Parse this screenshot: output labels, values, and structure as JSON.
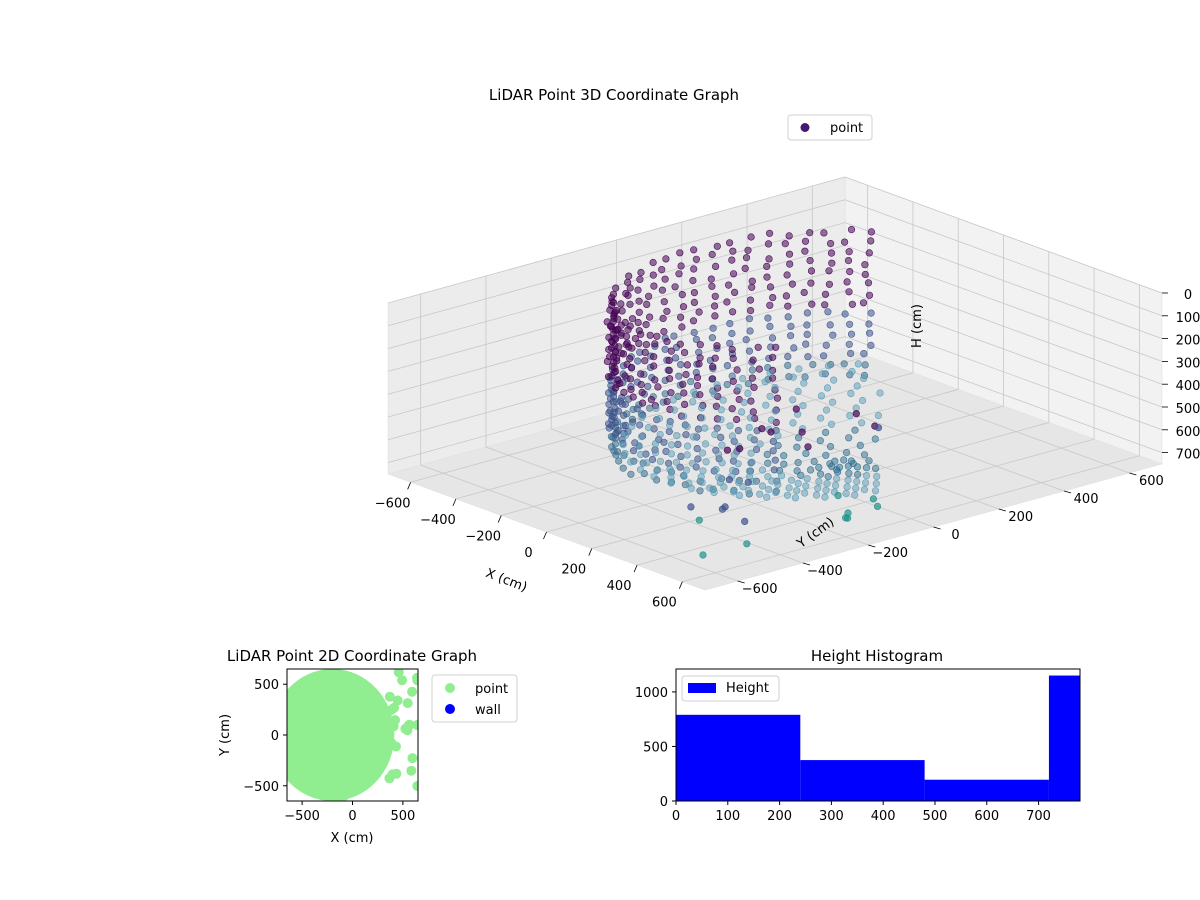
{
  "chart_data": [
    {
      "type": "scatter",
      "projection": "3d",
      "title": "LiDAR Point 3D Coordinate Graph",
      "xlabel": "X (cm)",
      "ylabel": "Y (cm)",
      "zlabel": "H (cm)",
      "xlim": [
        -700,
        700
      ],
      "ylim": [
        -700,
        700
      ],
      "zlim": [
        0,
        750
      ],
      "z_inverted": true,
      "xticks": [
        -600,
        -400,
        -200,
        0,
        200,
        400,
        600
      ],
      "yticks": [
        -600,
        -400,
        -200,
        0,
        200,
        400,
        600
      ],
      "zticks": [
        0,
        100,
        200,
        300,
        400,
        500,
        600,
        700
      ],
      "grid": true,
      "legend": {
        "placement": "upper-right",
        "entries": [
          {
            "label": "point",
            "color": "#46186e"
          }
        ]
      },
      "point_groups": [
        {
          "shape": "cylindrical-wall",
          "center": [
            -100,
            150
          ],
          "radius": 480,
          "angle_range_deg": [
            95,
            320
          ],
          "height_range": [
            60,
            720
          ]
        },
        {
          "shape": "floor-rings",
          "center": [
            150,
            100
          ],
          "radius_range": [
            30,
            560
          ],
          "height": 720
        },
        {
          "shape": "cluster",
          "center": [
            150,
            300
          ],
          "height_range": [
            80,
            380
          ]
        },
        {
          "shape": "scattered",
          "x_range": [
            400,
            650
          ],
          "y_range": [
            -650,
            650
          ],
          "height_range": [
            100,
            730
          ]
        }
      ],
      "colormap": [
        "#440154",
        "#3b528b",
        "#21918c",
        "#5ec962"
      ]
    },
    {
      "type": "scatter",
      "title": "LiDAR Point 2D Coordinate Graph",
      "xlabel": "X (cm)",
      "ylabel": "Y (cm)",
      "xlim": [
        -650,
        650
      ],
      "ylim": [
        -650,
        650
      ],
      "xticks": [
        -500,
        0,
        500
      ],
      "yticks": [
        -500,
        0,
        500
      ],
      "series": [
        {
          "name": "point",
          "color": "#90ee90",
          "shape": "filled-disc",
          "x_range": [
            -650,
            300
          ],
          "y_range": [
            -650,
            650
          ]
        },
        {
          "name": "wall",
          "color": "#0000ff",
          "points": []
        }
      ],
      "legend": {
        "placement": "outside-right"
      }
    },
    {
      "type": "bar",
      "title": "Height Histogram",
      "histogram": true,
      "bins": [
        [
          0,
          240
        ],
        [
          240,
          480
        ],
        [
          480,
          720
        ],
        [
          720,
          780
        ]
      ],
      "values": [
        790,
        375,
        195,
        1150
      ],
      "xlim": [
        0,
        780
      ],
      "ylim": [
        0,
        1210
      ],
      "xticks": [
        0,
        100,
        200,
        300,
        400,
        500,
        600,
        700
      ],
      "yticks": [
        0,
        500,
        1000
      ],
      "series": [
        {
          "name": "Height",
          "color": "#0000ff"
        }
      ],
      "legend": {
        "placement": "upper-left"
      }
    }
  ]
}
